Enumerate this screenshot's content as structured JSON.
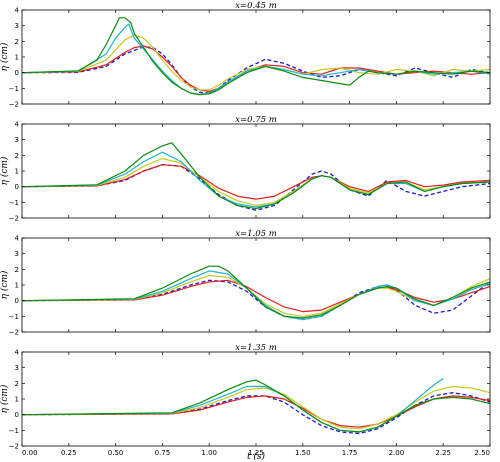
{
  "chart_data": [
    {
      "type": "line",
      "title": "x=0.45 m",
      "ylabel": "η (cm)",
      "xlabel": "",
      "xlim": [
        0,
        2.5
      ],
      "ylim": [
        -2,
        4
      ],
      "yticks": [
        "−2",
        "−1",
        "0",
        "1",
        "2",
        "3",
        "4"
      ],
      "grid": false,
      "series": [
        {
          "color": "#1a1ad6",
          "dash": true,
          "x": [
            0,
            0.3,
            0.45,
            0.55,
            0.65,
            0.7,
            0.75,
            0.8,
            0.85,
            0.9,
            0.95,
            1.0,
            1.05,
            1.1,
            1.2,
            1.3,
            1.4,
            1.5,
            1.6,
            1.7,
            1.8,
            1.9,
            2.0,
            2.1,
            2.2,
            2.3,
            2.4,
            2.5
          ],
          "y": [
            0,
            0.02,
            0.4,
            1.2,
            1.65,
            1.6,
            1.2,
            0.5,
            -0.3,
            -0.9,
            -1.25,
            -1.3,
            -1.0,
            -0.5,
            0.3,
            0.85,
            0.6,
            0.1,
            -0.3,
            -0.2,
            0.2,
            0.0,
            -0.2,
            0.3,
            0.0,
            -0.3,
            0.2,
            0.0
          ]
        },
        {
          "color": "#e01e1e",
          "x": [
            0,
            0.3,
            0.45,
            0.55,
            0.6,
            0.65,
            0.7,
            0.75,
            0.8,
            0.85,
            0.9,
            0.95,
            1.0,
            1.05,
            1.1,
            1.2,
            1.3,
            1.4,
            1.5,
            1.6,
            1.7,
            1.8,
            1.9,
            2.0,
            2.1,
            2.2,
            2.3,
            2.4,
            2.5
          ],
          "y": [
            0,
            0.05,
            0.5,
            1.3,
            1.6,
            1.7,
            1.5,
            1.0,
            0.4,
            -0.3,
            -0.8,
            -1.1,
            -1.2,
            -1.0,
            -0.6,
            0.1,
            0.5,
            0.4,
            0.0,
            -0.1,
            0.3,
            0.3,
            0.1,
            -0.1,
            0.0,
            0.1,
            0.0,
            -0.1,
            0.0
          ]
        },
        {
          "color": "#c8c81e",
          "x": [
            0,
            0.3,
            0.45,
            0.55,
            0.6,
            0.65,
            0.7,
            0.75,
            0.8,
            0.85,
            0.9,
            0.95,
            1.0,
            1.05,
            1.1,
            1.2,
            1.3,
            1.4,
            1.5,
            1.6,
            1.7,
            1.8,
            1.9,
            2.0,
            2.1,
            2.2,
            2.3,
            2.4,
            2.5
          ],
          "y": [
            0,
            0.08,
            0.8,
            2.1,
            2.4,
            2.2,
            1.6,
            0.8,
            0.1,
            -0.5,
            -0.9,
            -1.1,
            -1.1,
            -0.8,
            -0.4,
            0.2,
            0.4,
            0.2,
            -0.1,
            0.2,
            0.3,
            0.0,
            -0.1,
            0.2,
            0.1,
            -0.2,
            0.2,
            0.1,
            0.2
          ]
        },
        {
          "color": "#1eb4d2",
          "x": [
            0,
            0.3,
            0.45,
            0.5,
            0.55,
            0.57,
            0.6,
            0.65,
            0.7,
            0.75,
            0.8,
            0.85,
            0.9,
            0.95,
            1.0,
            1.05,
            1.1,
            1.2,
            1.3,
            1.4,
            1.5,
            1.6,
            1.7,
            1.8,
            1.9,
            2.0,
            2.1,
            2.2,
            2.3,
            2.4,
            2.5
          ],
          "y": [
            0,
            0.1,
            1.2,
            2.2,
            2.9,
            3.1,
            2.2,
            1.5,
            0.8,
            0.1,
            -0.5,
            -1.0,
            -1.3,
            -1.4,
            -1.3,
            -1.0,
            -0.6,
            0.1,
            0.4,
            0.2,
            -0.1,
            -0.2,
            0.0,
            0.2,
            0.0,
            -0.1,
            0.1,
            -0.1,
            0.0,
            0.1,
            -0.1
          ]
        },
        {
          "color": "#0a8c0a",
          "x": [
            0,
            0.3,
            0.4,
            0.45,
            0.5,
            0.52,
            0.55,
            0.58,
            0.6,
            0.65,
            0.7,
            0.75,
            0.8,
            0.85,
            0.9,
            0.95,
            1.0,
            1.05,
            1.1,
            1.2,
            1.3,
            1.4,
            1.5,
            1.6,
            1.7,
            1.75,
            1.8,
            1.85,
            1.9,
            2.0,
            2.1,
            2.2,
            2.3,
            2.4,
            2.5
          ],
          "y": [
            0,
            0.12,
            0.8,
            1.8,
            3.0,
            3.5,
            3.5,
            3.2,
            2.5,
            1.6,
            0.7,
            0.0,
            -0.6,
            -1.0,
            -1.3,
            -1.4,
            -1.35,
            -1.1,
            -0.7,
            0.0,
            0.4,
            0.1,
            -0.3,
            -0.5,
            -0.7,
            -0.8,
            -0.3,
            0.1,
            0.0,
            -0.1,
            0.1,
            0.0,
            -0.1,
            0.1,
            0.0
          ]
        }
      ]
    },
    {
      "type": "line",
      "title": "x=0.75 m",
      "ylabel": "η (cm)",
      "xlabel": "",
      "xlim": [
        0,
        2.5
      ],
      "ylim": [
        -2,
        4
      ],
      "yticks": [
        "−2",
        "−1",
        "0",
        "1",
        "2",
        "3",
        "4"
      ],
      "grid": false,
      "series": [
        {
          "color": "#1a1ad6",
          "dash": true,
          "x": [
            0,
            0.4,
            0.55,
            0.65,
            0.75,
            0.85,
            0.95,
            1.05,
            1.15,
            1.25,
            1.35,
            1.45,
            1.55,
            1.6,
            1.65,
            1.75,
            1.85,
            1.95,
            2.05,
            2.15,
            2.25,
            2.35,
            2.5
          ],
          "y": [
            0,
            0.05,
            0.4,
            1.0,
            1.4,
            1.3,
            0.5,
            -0.5,
            -1.2,
            -1.5,
            -1.2,
            -0.2,
            0.8,
            1.0,
            0.8,
            -0.2,
            -0.6,
            0.4,
            -0.3,
            -0.6,
            -0.3,
            0.0,
            0.2
          ]
        },
        {
          "color": "#e01e1e",
          "x": [
            0,
            0.4,
            0.55,
            0.65,
            0.75,
            0.85,
            0.95,
            1.05,
            1.15,
            1.25,
            1.35,
            1.45,
            1.55,
            1.6,
            1.65,
            1.75,
            1.85,
            1.95,
            2.05,
            2.15,
            2.25,
            2.35,
            2.5
          ],
          "y": [
            0,
            0.05,
            0.45,
            1.0,
            1.4,
            1.3,
            0.7,
            -0.1,
            -0.6,
            -0.8,
            -0.6,
            0.0,
            0.6,
            0.7,
            0.6,
            0.0,
            -0.3,
            0.3,
            0.4,
            0.0,
            0.1,
            0.3,
            0.4
          ]
        },
        {
          "color": "#c8c81e",
          "x": [
            0,
            0.4,
            0.55,
            0.65,
            0.75,
            0.85,
            0.95,
            1.05,
            1.15,
            1.25,
            1.35,
            1.45,
            1.55,
            1.6,
            1.65,
            1.75,
            1.85,
            1.95,
            2.05,
            2.15,
            2.25,
            2.35,
            2.5
          ],
          "y": [
            0,
            0.08,
            0.6,
            1.3,
            1.8,
            1.5,
            0.6,
            -0.3,
            -0.9,
            -1.2,
            -1.0,
            -0.3,
            0.5,
            0.7,
            0.6,
            -0.1,
            -0.4,
            0.2,
            0.3,
            -0.2,
            0.0,
            0.2,
            0.3
          ]
        },
        {
          "color": "#1eb4d2",
          "x": [
            0,
            0.4,
            0.55,
            0.65,
            0.75,
            0.85,
            0.95,
            1.05,
            1.15,
            1.25,
            1.35,
            1.45,
            1.55,
            1.6,
            1.65,
            1.75,
            1.85,
            1.95,
            2.05,
            2.15,
            2.25,
            2.35,
            2.5
          ],
          "y": [
            0,
            0.1,
            0.8,
            1.6,
            2.2,
            1.6,
            0.4,
            -0.6,
            -1.1,
            -1.3,
            -1.1,
            -0.4,
            0.5,
            0.7,
            0.6,
            -0.2,
            -0.5,
            0.2,
            0.2,
            -0.3,
            0.0,
            0.2,
            0.3
          ]
        },
        {
          "color": "#0a8c0a",
          "x": [
            0,
            0.4,
            0.55,
            0.65,
            0.75,
            0.8,
            0.85,
            0.95,
            1.05,
            1.15,
            1.25,
            1.35,
            1.45,
            1.55,
            1.6,
            1.65,
            1.75,
            1.85,
            1.95,
            2.05,
            2.15,
            2.25,
            2.35,
            2.5
          ],
          "y": [
            0,
            0.12,
            1.0,
            2.0,
            2.6,
            2.8,
            2.1,
            0.6,
            -0.6,
            -1.2,
            -1.4,
            -1.1,
            -0.4,
            0.5,
            0.7,
            0.6,
            -0.2,
            -0.5,
            0.2,
            0.3,
            -0.3,
            0.0,
            0.2,
            0.3
          ]
        }
      ]
    },
    {
      "type": "line",
      "title": "x=1.05 m",
      "ylabel": "η (cm)",
      "xlabel": "",
      "xlim": [
        0,
        2.5
      ],
      "ylim": [
        -2,
        4
      ],
      "yticks": [
        "−2",
        "−1",
        "0",
        "1",
        "2",
        "3",
        "4"
      ],
      "grid": false,
      "series": [
        {
          "color": "#1a1ad6",
          "dash": true,
          "x": [
            0,
            0.6,
            0.75,
            0.9,
            1.0,
            1.1,
            1.2,
            1.3,
            1.4,
            1.5,
            1.6,
            1.7,
            1.8,
            1.9,
            1.95,
            2.0,
            2.1,
            2.2,
            2.3,
            2.4,
            2.5
          ],
          "y": [
            0,
            0.05,
            0.4,
            1.0,
            1.3,
            1.2,
            0.6,
            -0.4,
            -1.0,
            -1.2,
            -1.0,
            -0.3,
            0.5,
            0.9,
            1.0,
            0.7,
            -0.3,
            -0.8,
            -0.6,
            0.3,
            1.2
          ]
        },
        {
          "color": "#e01e1e",
          "x": [
            0,
            0.6,
            0.75,
            0.9,
            1.0,
            1.1,
            1.2,
            1.3,
            1.4,
            1.5,
            1.6,
            1.7,
            1.8,
            1.9,
            1.95,
            2.0,
            2.1,
            2.2,
            2.3,
            2.4,
            2.5
          ],
          "y": [
            0,
            0.05,
            0.35,
            0.9,
            1.2,
            1.3,
            0.9,
            0.2,
            -0.4,
            -0.7,
            -0.6,
            -0.1,
            0.4,
            0.8,
            0.85,
            0.7,
            0.2,
            -0.1,
            0.1,
            0.5,
            0.9
          ]
        },
        {
          "color": "#c8c81e",
          "x": [
            0,
            0.6,
            0.75,
            0.9,
            1.0,
            1.1,
            1.2,
            1.3,
            1.4,
            1.5,
            1.6,
            1.7,
            1.8,
            1.9,
            1.95,
            2.0,
            2.1,
            2.2,
            2.3,
            2.4,
            2.5
          ],
          "y": [
            0,
            0.08,
            0.5,
            1.2,
            1.6,
            1.5,
            0.8,
            -0.2,
            -0.8,
            -1.0,
            -0.8,
            -0.2,
            0.4,
            0.8,
            0.8,
            0.6,
            0.0,
            -0.3,
            0.2,
            0.9,
            1.4
          ]
        },
        {
          "color": "#1eb4d2",
          "x": [
            0,
            0.6,
            0.75,
            0.9,
            1.0,
            1.1,
            1.2,
            1.3,
            1.4,
            1.5,
            1.6,
            1.7,
            1.8,
            1.9,
            1.95,
            2.0,
            2.1,
            2.2,
            2.3,
            2.4,
            2.5
          ],
          "y": [
            0,
            0.1,
            0.6,
            1.4,
            1.9,
            1.7,
            0.8,
            -0.3,
            -1.0,
            -1.2,
            -1.0,
            -0.3,
            0.4,
            0.9,
            1.0,
            0.8,
            0.0,
            -0.3,
            0.1,
            0.7,
            1.1
          ]
        },
        {
          "color": "#0a8c0a",
          "x": [
            0,
            0.6,
            0.75,
            0.9,
            1.0,
            1.05,
            1.1,
            1.2,
            1.3,
            1.4,
            1.5,
            1.6,
            1.7,
            1.8,
            1.9,
            1.95,
            2.0,
            2.1,
            2.2,
            2.3,
            2.4,
            2.5
          ],
          "y": [
            0,
            0.12,
            0.8,
            1.7,
            2.2,
            2.2,
            1.9,
            0.8,
            -0.4,
            -1.0,
            -1.1,
            -0.9,
            -0.3,
            0.4,
            0.8,
            0.9,
            0.8,
            0.1,
            -0.3,
            0.2,
            0.8,
            1.2
          ]
        }
      ]
    },
    {
      "type": "line",
      "title": "x=1.35 m",
      "ylabel": "η (cm)",
      "xlabel": "t (s)",
      "xlim": [
        0,
        2.5
      ],
      "ylim": [
        -2,
        4
      ],
      "yticks": [
        "−2",
        "−1",
        "0",
        "1",
        "2",
        "3",
        "4"
      ],
      "xticks": [
        "0.00",
        "0.25",
        "0.50",
        "0.75",
        "1.00",
        "1.25",
        "1.50",
        "1.75",
        "2.00",
        "2.25",
        "2.50"
      ],
      "grid": false,
      "series": [
        {
          "color": "#1a1ad6",
          "dash": true,
          "x": [
            0,
            0.8,
            0.95,
            1.1,
            1.2,
            1.3,
            1.4,
            1.5,
            1.6,
            1.7,
            1.8,
            1.9,
            2.0,
            2.1,
            2.2,
            2.3,
            2.4,
            2.5
          ],
          "y": [
            0,
            0.05,
            0.35,
            0.9,
            1.2,
            1.2,
            0.8,
            0.0,
            -0.7,
            -1.1,
            -1.2,
            -0.9,
            -0.2,
            0.6,
            1.2,
            1.4,
            1.2,
            0.8
          ]
        },
        {
          "color": "#e01e1e",
          "x": [
            0,
            0.8,
            0.95,
            1.1,
            1.2,
            1.3,
            1.4,
            1.5,
            1.6,
            1.7,
            1.8,
            1.9,
            2.0,
            2.1,
            2.2,
            2.3,
            2.4,
            2.5
          ],
          "y": [
            0,
            0.05,
            0.3,
            0.8,
            1.1,
            1.2,
            1.0,
            0.4,
            -0.3,
            -0.7,
            -0.8,
            -0.6,
            -0.1,
            0.5,
            1.0,
            1.2,
            1.1,
            0.9
          ]
        },
        {
          "color": "#c8c81e",
          "x": [
            0,
            0.8,
            0.95,
            1.1,
            1.2,
            1.3,
            1.4,
            1.5,
            1.6,
            1.7,
            1.8,
            1.9,
            2.0,
            2.1,
            2.2,
            2.3,
            2.4,
            2.5
          ],
          "y": [
            0,
            0.08,
            0.45,
            1.1,
            1.6,
            1.7,
            1.3,
            0.5,
            -0.3,
            -0.8,
            -0.9,
            -0.6,
            0.0,
            0.8,
            1.5,
            1.8,
            1.7,
            1.4
          ]
        },
        {
          "color": "#1eb4d2",
          "x": [
            0,
            0.8,
            0.95,
            1.1,
            1.2,
            1.3,
            1.4,
            1.5,
            1.6,
            1.7,
            1.8,
            1.9,
            2.0,
            2.1,
            2.2,
            2.25
          ],
          "y": [
            0,
            0.1,
            0.6,
            1.3,
            1.8,
            1.8,
            1.2,
            0.3,
            -0.5,
            -1.0,
            -1.1,
            -0.8,
            -0.1,
            0.9,
            1.9,
            2.3
          ]
        },
        {
          "color": "#0a8c0a",
          "x": [
            0,
            0.8,
            0.95,
            1.1,
            1.2,
            1.25,
            1.3,
            1.4,
            1.5,
            1.6,
            1.7,
            1.8,
            1.9,
            2.0,
            2.1,
            2.2,
            2.3,
            2.4,
            2.5
          ],
          "y": [
            0,
            0.12,
            0.75,
            1.6,
            2.1,
            2.2,
            1.9,
            1.2,
            0.3,
            -0.5,
            -1.0,
            -1.1,
            -0.8,
            -0.1,
            0.6,
            1.0,
            1.1,
            1.0,
            0.7
          ]
        }
      ]
    }
  ]
}
